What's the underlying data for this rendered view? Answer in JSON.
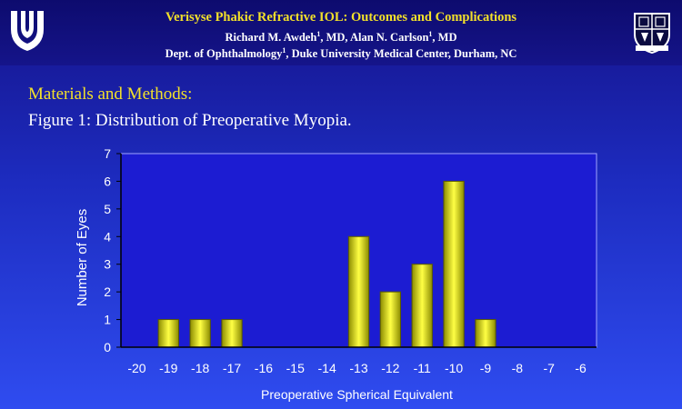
{
  "header": {
    "title": "Verisyse Phakic Refractive IOL: Outcomes and Complications",
    "authors": {
      "name1": "Richard M. Awdeh",
      "sup1": "1",
      "mid": ", MD, Alan N. Carlson",
      "sup2": "1",
      "end": ", MD"
    },
    "dept": {
      "start": "Dept. of Ophthalmology",
      "sup": "1",
      "end": ", Duke University Medical Center, Durham, NC"
    },
    "logo_left_icon": "duke-health-shield-icon",
    "logo_right_icon": "duke-university-crest-icon"
  },
  "section_title": "Materials and Methods:",
  "figure_title": "Figure 1: Distribution of Preoperative Myopia.",
  "chart_data": {
    "type": "bar",
    "categories": [
      "-20",
      "-19",
      "-18",
      "-17",
      "-16",
      "-15",
      "-14",
      "-13",
      "-12",
      "-11",
      "-10",
      "-9",
      "-8",
      "-7",
      "-6"
    ],
    "values": [
      0,
      1,
      1,
      1,
      0,
      0,
      0,
      4,
      2,
      3,
      6,
      1,
      0,
      0,
      0
    ],
    "ylim": [
      0,
      7
    ],
    "yticks": [
      0,
      1,
      2,
      3,
      4,
      5,
      6,
      7
    ],
    "xlabel": "Preoperative Spherical Equivalent",
    "ylabel": "Number of Eyes",
    "grid": false,
    "legend": "none",
    "colors": {
      "plot_bg": "#1c1cd2",
      "bar_edge": "#5a5a00",
      "bar_center": "#ffff44",
      "bar_side": "#8c8c00",
      "axis_text": "#ffffff"
    }
  }
}
